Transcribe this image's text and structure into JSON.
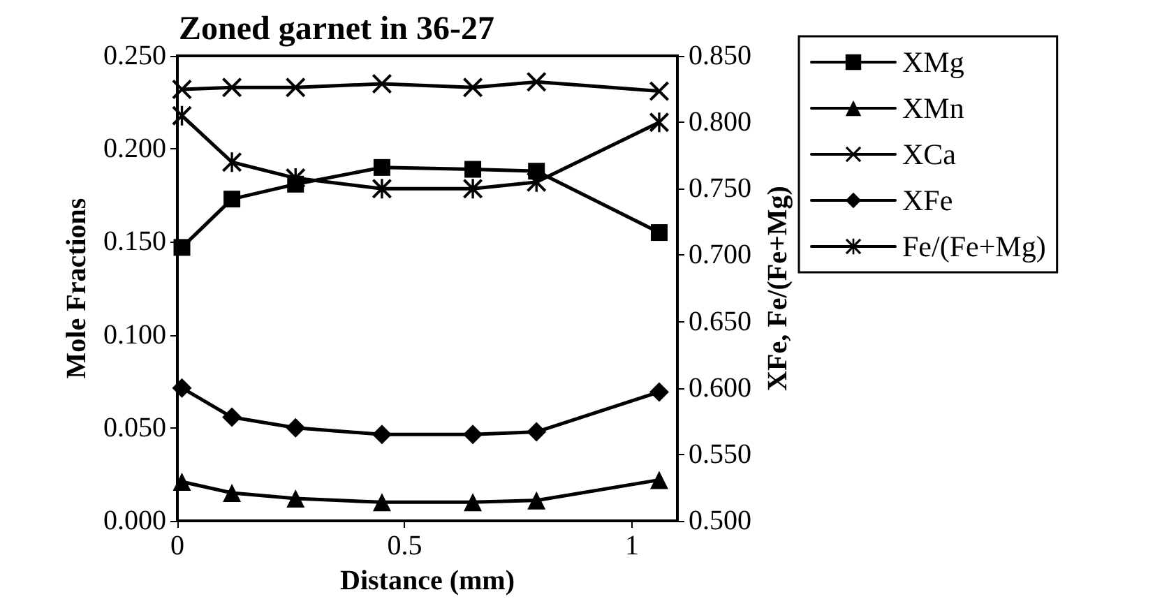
{
  "chart_data": {
    "type": "line",
    "title": "Zoned garnet in 36-27",
    "xlabel": "Distance (mm)",
    "ylabel": "Mole Fractions",
    "y2label": "XFe, Fe/(Fe+Mg)",
    "x": [
      0.01,
      0.12,
      0.26,
      0.45,
      0.65,
      0.79,
      1.06
    ],
    "series": [
      {
        "name": "XMg",
        "color": "#000000",
        "marker": "square",
        "values": [
          0.147,
          0.173,
          0.181,
          0.19,
          0.189,
          0.188,
          0.155
        ]
      },
      {
        "name": "XMn",
        "color": "#000000",
        "marker": "triangle",
        "values": [
          0.021,
          0.015,
          0.012,
          0.01,
          0.01,
          0.011,
          0.022
        ]
      },
      {
        "name": "XCa",
        "color": "#000000",
        "marker": "cross",
        "values": [
          0.232,
          0.233,
          0.233,
          0.235,
          0.233,
          0.236,
          0.231
        ]
      },
      {
        "name": "XFe",
        "color": "#000000",
        "marker": "diamond",
        "axis": "y2",
        "values": [
          0.6,
          0.578,
          0.57,
          0.565,
          0.565,
          0.567,
          0.597
        ]
      },
      {
        "name": "Fe/(Fe+Mg)",
        "color": "#000000",
        "marker": "star",
        "axis": "y2",
        "values": [
          0.805,
          0.77,
          0.758,
          0.75,
          0.75,
          0.755,
          0.8
        ]
      }
    ],
    "xlim": [
      0,
      1.1
    ],
    "xticks": [
      0,
      0.5,
      1
    ],
    "ylim": [
      0,
      0.25
    ],
    "yticks": [
      {
        "value": 0,
        "label": "0.000"
      },
      {
        "value": 0.05,
        "label": "0.050"
      },
      {
        "value": 0.1,
        "label": "0.100"
      },
      {
        "value": 0.15,
        "label": "0.150"
      },
      {
        "value": 0.2,
        "label": "0.200"
      },
      {
        "value": 0.25,
        "label": "0.250"
      }
    ],
    "y2lim": [
      0.5,
      0.85
    ],
    "y2ticks": [
      {
        "value": 0.5,
        "label": "0.500"
      },
      {
        "value": 0.55,
        "label": "0.550"
      },
      {
        "value": 0.6,
        "label": "0.600"
      },
      {
        "value": 0.65,
        "label": "0.650"
      },
      {
        "value": 0.7,
        "label": "0.700"
      },
      {
        "value": 0.75,
        "label": "0.750"
      },
      {
        "value": 0.8,
        "label": "0.800"
      },
      {
        "value": 0.85,
        "label": "0.850"
      }
    ],
    "grid": false,
    "legend": "right",
    "line_style": "solid"
  }
}
